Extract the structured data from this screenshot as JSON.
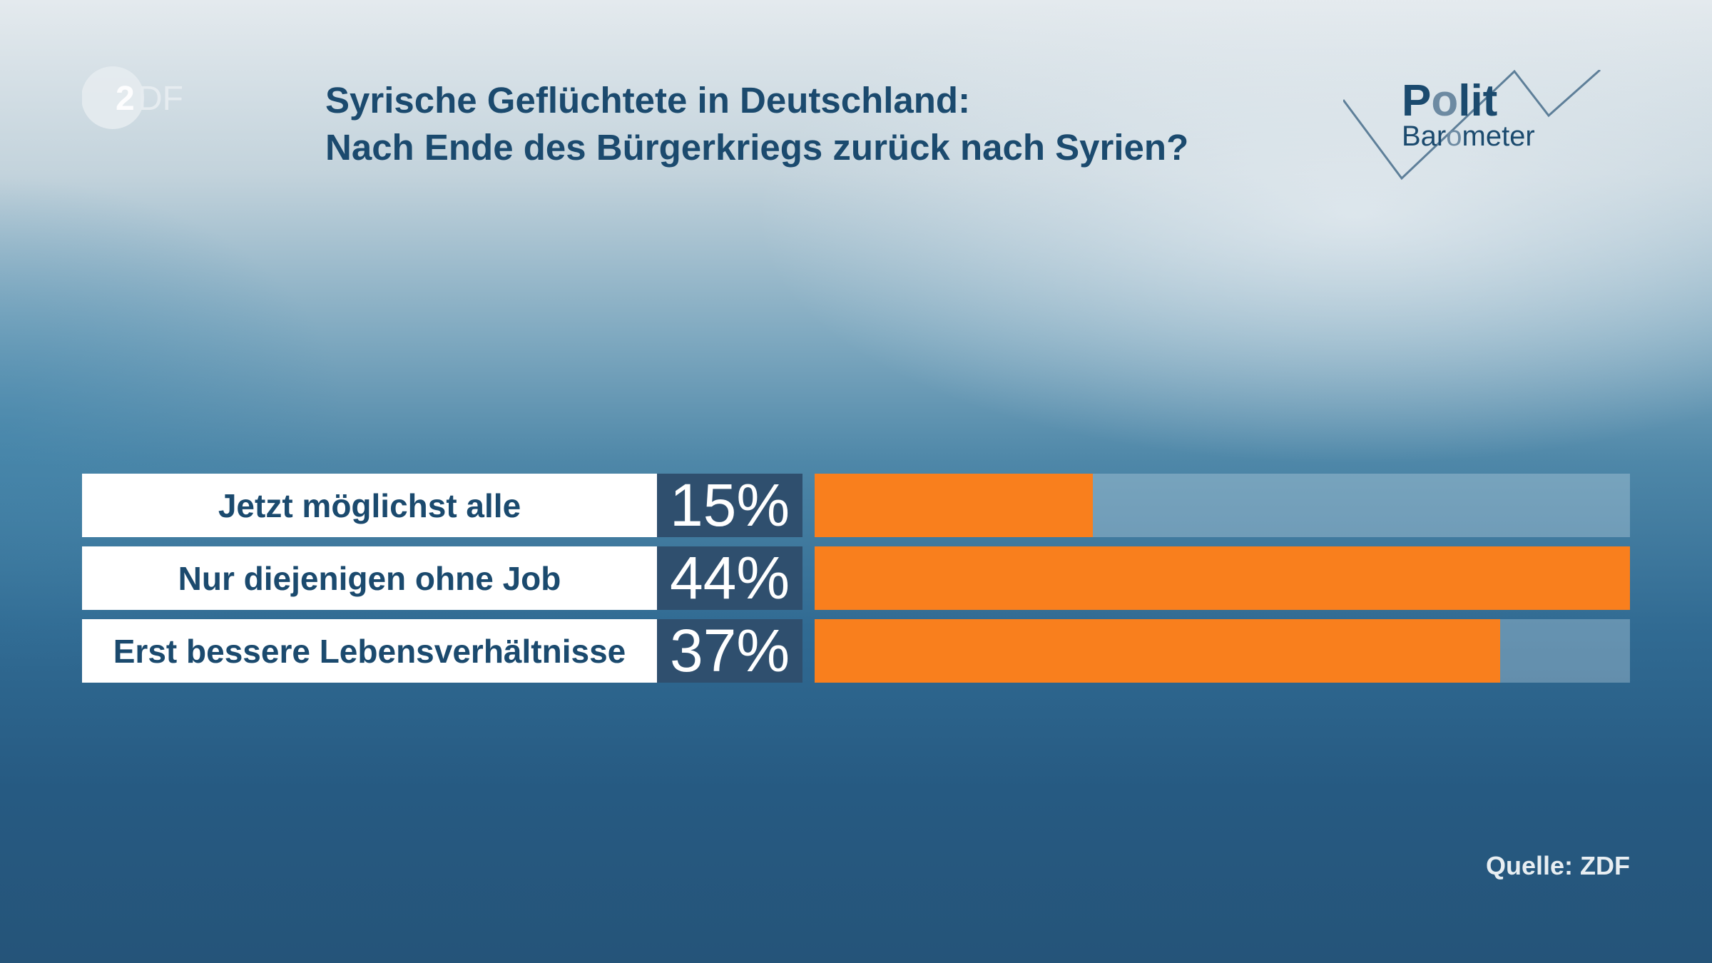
{
  "logo": "ZDF",
  "brand": "Polit Barometer",
  "colors": {
    "bar": "#f97f1d",
    "pct_box": "#2f4f6e",
    "title": "#1b4a6e"
  },
  "chart_data": {
    "type": "bar",
    "orientation": "horizontal",
    "title": "Syrische Geflüchtete in Deutschland:",
    "subtitle": "Nach Ende des Bürgerkriegs zurück nach Syrien?",
    "categories": [
      "Jetzt möglichst alle",
      "Nur diejenigen ohne Job",
      "Erst bessere Lebensverhältnisse"
    ],
    "values": [
      15,
      44,
      37
    ],
    "labels": [
      "15%",
      "44%",
      "37%"
    ],
    "unit": "%",
    "xlim": [
      0,
      44
    ]
  },
  "source": "Quelle: ZDF"
}
